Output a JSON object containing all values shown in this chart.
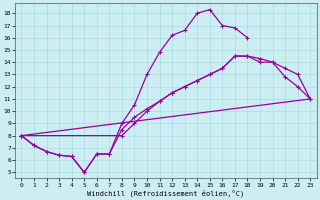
{
  "xlabel": "Windchill (Refroidissement éolien,°C)",
  "bg_color": "#cceef2",
  "line_color": "#990099",
  "marker": "+",
  "xlim": [
    -0.5,
    23.5
  ],
  "ylim": [
    4.5,
    18.8
  ],
  "xticks": [
    0,
    1,
    2,
    3,
    4,
    5,
    6,
    7,
    8,
    9,
    10,
    11,
    12,
    13,
    14,
    15,
    16,
    17,
    18,
    19,
    20,
    21,
    22,
    23
  ],
  "yticks": [
    5,
    6,
    7,
    8,
    9,
    10,
    11,
    12,
    13,
    14,
    15,
    16,
    17,
    18
  ],
  "curve1_x": [
    0,
    1,
    2,
    3,
    4,
    5,
    6,
    7,
    8,
    9,
    10,
    11,
    12,
    13,
    14,
    15,
    16,
    17,
    18
  ],
  "curve1_y": [
    8.0,
    7.2,
    6.7,
    6.4,
    6.3,
    5.0,
    6.5,
    6.5,
    9.0,
    10.5,
    13.0,
    14.8,
    16.2,
    16.6,
    18.0,
    18.3,
    17.0,
    16.8,
    16.0
  ],
  "curve2_x": [
    0,
    1,
    2,
    3,
    4,
    5,
    6,
    7,
    8,
    9,
    10,
    11,
    12,
    13,
    14,
    15,
    16,
    17,
    18,
    19,
    20,
    21,
    22,
    23
  ],
  "curve2_y": [
    8.0,
    7.2,
    6.7,
    6.4,
    6.3,
    5.0,
    6.5,
    6.5,
    8.5,
    9.5,
    10.2,
    10.8,
    11.5,
    12.0,
    12.5,
    13.0,
    13.5,
    14.5,
    14.5,
    14.0,
    14.0,
    12.8,
    12.0,
    11.0
  ],
  "curve3_x": [
    0,
    23
  ],
  "curve3_y": [
    8.0,
    11.0
  ],
  "curve4_x": [
    0,
    8,
    9,
    10,
    11,
    12,
    13,
    14,
    15,
    16,
    17,
    18,
    19,
    20,
    21,
    22,
    23
  ],
  "curve4_y": [
    8.0,
    8.0,
    9.0,
    10.0,
    10.8,
    11.5,
    12.0,
    12.5,
    13.0,
    13.5,
    14.5,
    14.5,
    14.3,
    14.0,
    13.5,
    13.0,
    11.0
  ]
}
